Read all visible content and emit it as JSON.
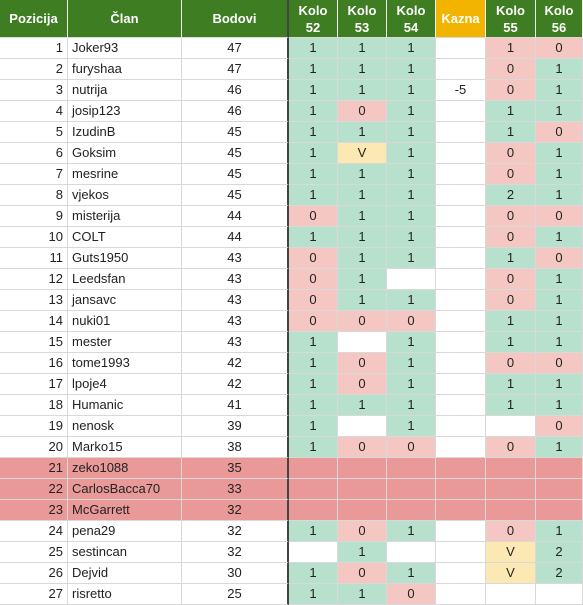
{
  "columns": [
    {
      "key": "pos",
      "label": "Pozicija"
    },
    {
      "key": "name",
      "label": "Član"
    },
    {
      "key": "pts",
      "label": "Bodovi"
    },
    {
      "key": "k52",
      "label": "Kolo\n52"
    },
    {
      "key": "k53",
      "label": "Kolo\n53"
    },
    {
      "key": "k54",
      "label": "Kolo\n54"
    },
    {
      "key": "kazna",
      "label": "Kazna"
    },
    {
      "key": "k55",
      "label": "Kolo\n55"
    },
    {
      "key": "k56",
      "label": "Kolo\n56"
    }
  ],
  "colors": {
    "header_green": "#3f7d22",
    "header_amber": "#f3b400",
    "win_green": "#b7e1cd",
    "miss_red": "#f4c7c3",
    "void_yellow": "#fce8b2",
    "band_red": "#ea9999",
    "white": "#ffffff"
  },
  "rows": [
    {
      "pos": "1",
      "name": "Joker93",
      "pts": "47",
      "rounds": [
        [
          "1",
          "g"
        ],
        [
          "1",
          "g"
        ],
        [
          "1",
          "g"
        ],
        [
          "",
          ""
        ],
        [
          "1",
          "r"
        ],
        [
          "0",
          "r"
        ]
      ]
    },
    {
      "pos": "2",
      "name": "furyshaa",
      "pts": "47",
      "rounds": [
        [
          "1",
          "g"
        ],
        [
          "1",
          "g"
        ],
        [
          "1",
          "g"
        ],
        [
          "",
          ""
        ],
        [
          "0",
          "r"
        ],
        [
          "1",
          "g"
        ]
      ]
    },
    {
      "pos": "3",
      "name": "nutrija",
      "pts": "46",
      "rounds": [
        [
          "1",
          "g"
        ],
        [
          "1",
          "g"
        ],
        [
          "1",
          "g"
        ],
        [
          "-5",
          ""
        ],
        [
          "0",
          "r"
        ],
        [
          "1",
          "g"
        ]
      ]
    },
    {
      "pos": "4",
      "name": "josip123",
      "pts": "46",
      "rounds": [
        [
          "1",
          "g"
        ],
        [
          "0",
          "r"
        ],
        [
          "1",
          "g"
        ],
        [
          "",
          ""
        ],
        [
          "1",
          "g"
        ],
        [
          "1",
          "g"
        ]
      ]
    },
    {
      "pos": "5",
      "name": "IzudinB",
      "pts": "45",
      "rounds": [
        [
          "1",
          "g"
        ],
        [
          "1",
          "g"
        ],
        [
          "1",
          "g"
        ],
        [
          "",
          ""
        ],
        [
          "1",
          "g"
        ],
        [
          "0",
          "r"
        ]
      ]
    },
    {
      "pos": "6",
      "name": "Goksim",
      "pts": "45",
      "rounds": [
        [
          "1",
          "g"
        ],
        [
          "V",
          "y"
        ],
        [
          "1",
          "g"
        ],
        [
          "",
          ""
        ],
        [
          "0",
          "r"
        ],
        [
          "1",
          "g"
        ]
      ]
    },
    {
      "pos": "7",
      "name": "mesrine",
      "pts": "45",
      "rounds": [
        [
          "1",
          "g"
        ],
        [
          "1",
          "g"
        ],
        [
          "1",
          "g"
        ],
        [
          "",
          ""
        ],
        [
          "0",
          "r"
        ],
        [
          "1",
          "g"
        ]
      ]
    },
    {
      "pos": "8",
      "name": "vjekos",
      "pts": "45",
      "rounds": [
        [
          "1",
          "g"
        ],
        [
          "1",
          "g"
        ],
        [
          "1",
          "g"
        ],
        [
          "",
          ""
        ],
        [
          "2",
          "g"
        ],
        [
          "1",
          "g"
        ]
      ]
    },
    {
      "pos": "9",
      "name": "misterija",
      "pts": "44",
      "rounds": [
        [
          "0",
          "r"
        ],
        [
          "1",
          "g"
        ],
        [
          "1",
          "g"
        ],
        [
          "",
          ""
        ],
        [
          "0",
          "r"
        ],
        [
          "0",
          "r"
        ]
      ]
    },
    {
      "pos": "10",
      "name": "COLT",
      "pts": "44",
      "rounds": [
        [
          "1",
          "g"
        ],
        [
          "1",
          "g"
        ],
        [
          "1",
          "g"
        ],
        [
          "",
          ""
        ],
        [
          "0",
          "r"
        ],
        [
          "1",
          "g"
        ]
      ]
    },
    {
      "pos": "11",
      "name": "Guts1950",
      "pts": "43",
      "rounds": [
        [
          "0",
          "r"
        ],
        [
          "1",
          "g"
        ],
        [
          "1",
          "g"
        ],
        [
          "",
          ""
        ],
        [
          "1",
          "g"
        ],
        [
          "0",
          "r"
        ]
      ]
    },
    {
      "pos": "12",
      "name": "Leedsfan",
      "pts": "43",
      "rounds": [
        [
          "0",
          "r"
        ],
        [
          "1",
          "g"
        ],
        [
          "",
          "w"
        ],
        [
          "",
          ""
        ],
        [
          "0",
          "r"
        ],
        [
          "1",
          "g"
        ]
      ]
    },
    {
      "pos": "13",
      "name": "jansavc",
      "pts": "43",
      "rounds": [
        [
          "0",
          "r"
        ],
        [
          "1",
          "g"
        ],
        [
          "1",
          "g"
        ],
        [
          "",
          ""
        ],
        [
          "0",
          "r"
        ],
        [
          "1",
          "g"
        ]
      ]
    },
    {
      "pos": "14",
      "name": "nuki01",
      "pts": "43",
      "rounds": [
        [
          "0",
          "r"
        ],
        [
          "0",
          "r"
        ],
        [
          "0",
          "r"
        ],
        [
          "",
          ""
        ],
        [
          "1",
          "g"
        ],
        [
          "1",
          "g"
        ]
      ]
    },
    {
      "pos": "15",
      "name": "mester",
      "pts": "43",
      "rounds": [
        [
          "1",
          "g"
        ],
        [
          "",
          "w"
        ],
        [
          "1",
          "g"
        ],
        [
          "",
          ""
        ],
        [
          "1",
          "g"
        ],
        [
          "1",
          "g"
        ]
      ]
    },
    {
      "pos": "16",
      "name": "tome1993",
      "pts": "42",
      "rounds": [
        [
          "1",
          "g"
        ],
        [
          "0",
          "r"
        ],
        [
          "1",
          "g"
        ],
        [
          "",
          ""
        ],
        [
          "0",
          "r"
        ],
        [
          "0",
          "r"
        ]
      ]
    },
    {
      "pos": "17",
      "name": "lpoje4",
      "pts": "42",
      "rounds": [
        [
          "1",
          "g"
        ],
        [
          "0",
          "r"
        ],
        [
          "1",
          "g"
        ],
        [
          "",
          ""
        ],
        [
          "1",
          "g"
        ],
        [
          "1",
          "g"
        ]
      ]
    },
    {
      "pos": "18",
      "name": "Humanic",
      "pts": "41",
      "rounds": [
        [
          "1",
          "g"
        ],
        [
          "1",
          "g"
        ],
        [
          "1",
          "g"
        ],
        [
          "",
          ""
        ],
        [
          "1",
          "g"
        ],
        [
          "1",
          "g"
        ]
      ]
    },
    {
      "pos": "19",
      "name": "nenosk",
      "pts": "39",
      "rounds": [
        [
          "1",
          "g"
        ],
        [
          "",
          "w"
        ],
        [
          "1",
          "g"
        ],
        [
          "",
          ""
        ],
        [
          "",
          "w"
        ],
        [
          "0",
          "r"
        ]
      ]
    },
    {
      "pos": "20",
      "name": "Marko15",
      "pts": "38",
      "rounds": [
        [
          "1",
          "g"
        ],
        [
          "0",
          "r"
        ],
        [
          "0",
          "r"
        ],
        [
          "",
          ""
        ],
        [
          "0",
          "r"
        ],
        [
          "1",
          "g"
        ]
      ]
    },
    {
      "pos": "21",
      "name": "zeko1088",
      "pts": "35",
      "band": true,
      "rounds": [
        [
          "",
          "b"
        ],
        [
          "",
          "b"
        ],
        [
          "",
          "b"
        ],
        [
          "",
          "b"
        ],
        [
          "",
          "b"
        ],
        [
          "",
          "b"
        ]
      ]
    },
    {
      "pos": "22",
      "name": "CarlosBacca70",
      "pts": "33",
      "band": true,
      "rounds": [
        [
          "",
          "b"
        ],
        [
          "",
          "b"
        ],
        [
          "",
          "b"
        ],
        [
          "",
          "b"
        ],
        [
          "",
          "b"
        ],
        [
          "",
          "b"
        ]
      ]
    },
    {
      "pos": "23",
      "name": "McGarrett",
      "pts": "32",
      "band": true,
      "rounds": [
        [
          "",
          "b"
        ],
        [
          "",
          "b"
        ],
        [
          "",
          "b"
        ],
        [
          "",
          "b"
        ],
        [
          "",
          "b"
        ],
        [
          "",
          "b"
        ]
      ]
    },
    {
      "pos": "24",
      "name": "pena29",
      "pts": "32",
      "rounds": [
        [
          "1",
          "g"
        ],
        [
          "0",
          "r"
        ],
        [
          "1",
          "g"
        ],
        [
          "",
          ""
        ],
        [
          "0",
          "r"
        ],
        [
          "1",
          "g"
        ]
      ]
    },
    {
      "pos": "25",
      "name": "sestincan",
      "pts": "32",
      "rounds": [
        [
          "",
          "w"
        ],
        [
          "1",
          "g"
        ],
        [
          "",
          "w"
        ],
        [
          "",
          ""
        ],
        [
          "V",
          "y"
        ],
        [
          "2",
          "g"
        ]
      ]
    },
    {
      "pos": "26",
      "name": "Dejvid",
      "pts": "30",
      "rounds": [
        [
          "1",
          "g"
        ],
        [
          "0",
          "r"
        ],
        [
          "1",
          "g"
        ],
        [
          "",
          ""
        ],
        [
          "V",
          "y"
        ],
        [
          "2",
          "g"
        ]
      ]
    },
    {
      "pos": "27",
      "name": "risretto",
      "pts": "25",
      "rounds": [
        [
          "1",
          "g"
        ],
        [
          "1",
          "g"
        ],
        [
          "0",
          "r"
        ],
        [
          "",
          ""
        ],
        [
          "",
          "w"
        ],
        [
          "",
          "w"
        ]
      ]
    }
  ]
}
